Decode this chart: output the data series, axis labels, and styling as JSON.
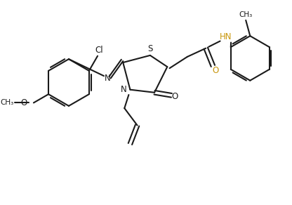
{
  "bg_color": "#ffffff",
  "line_color": "#1a1a1a",
  "line_width": 1.5,
  "figsize": [
    4.16,
    2.92
  ],
  "dpi": 100,
  "xlim": [
    0,
    10
  ],
  "ylim": [
    0,
    7
  ],
  "hn_color": "#c8960c",
  "o_color": "#c8960c"
}
